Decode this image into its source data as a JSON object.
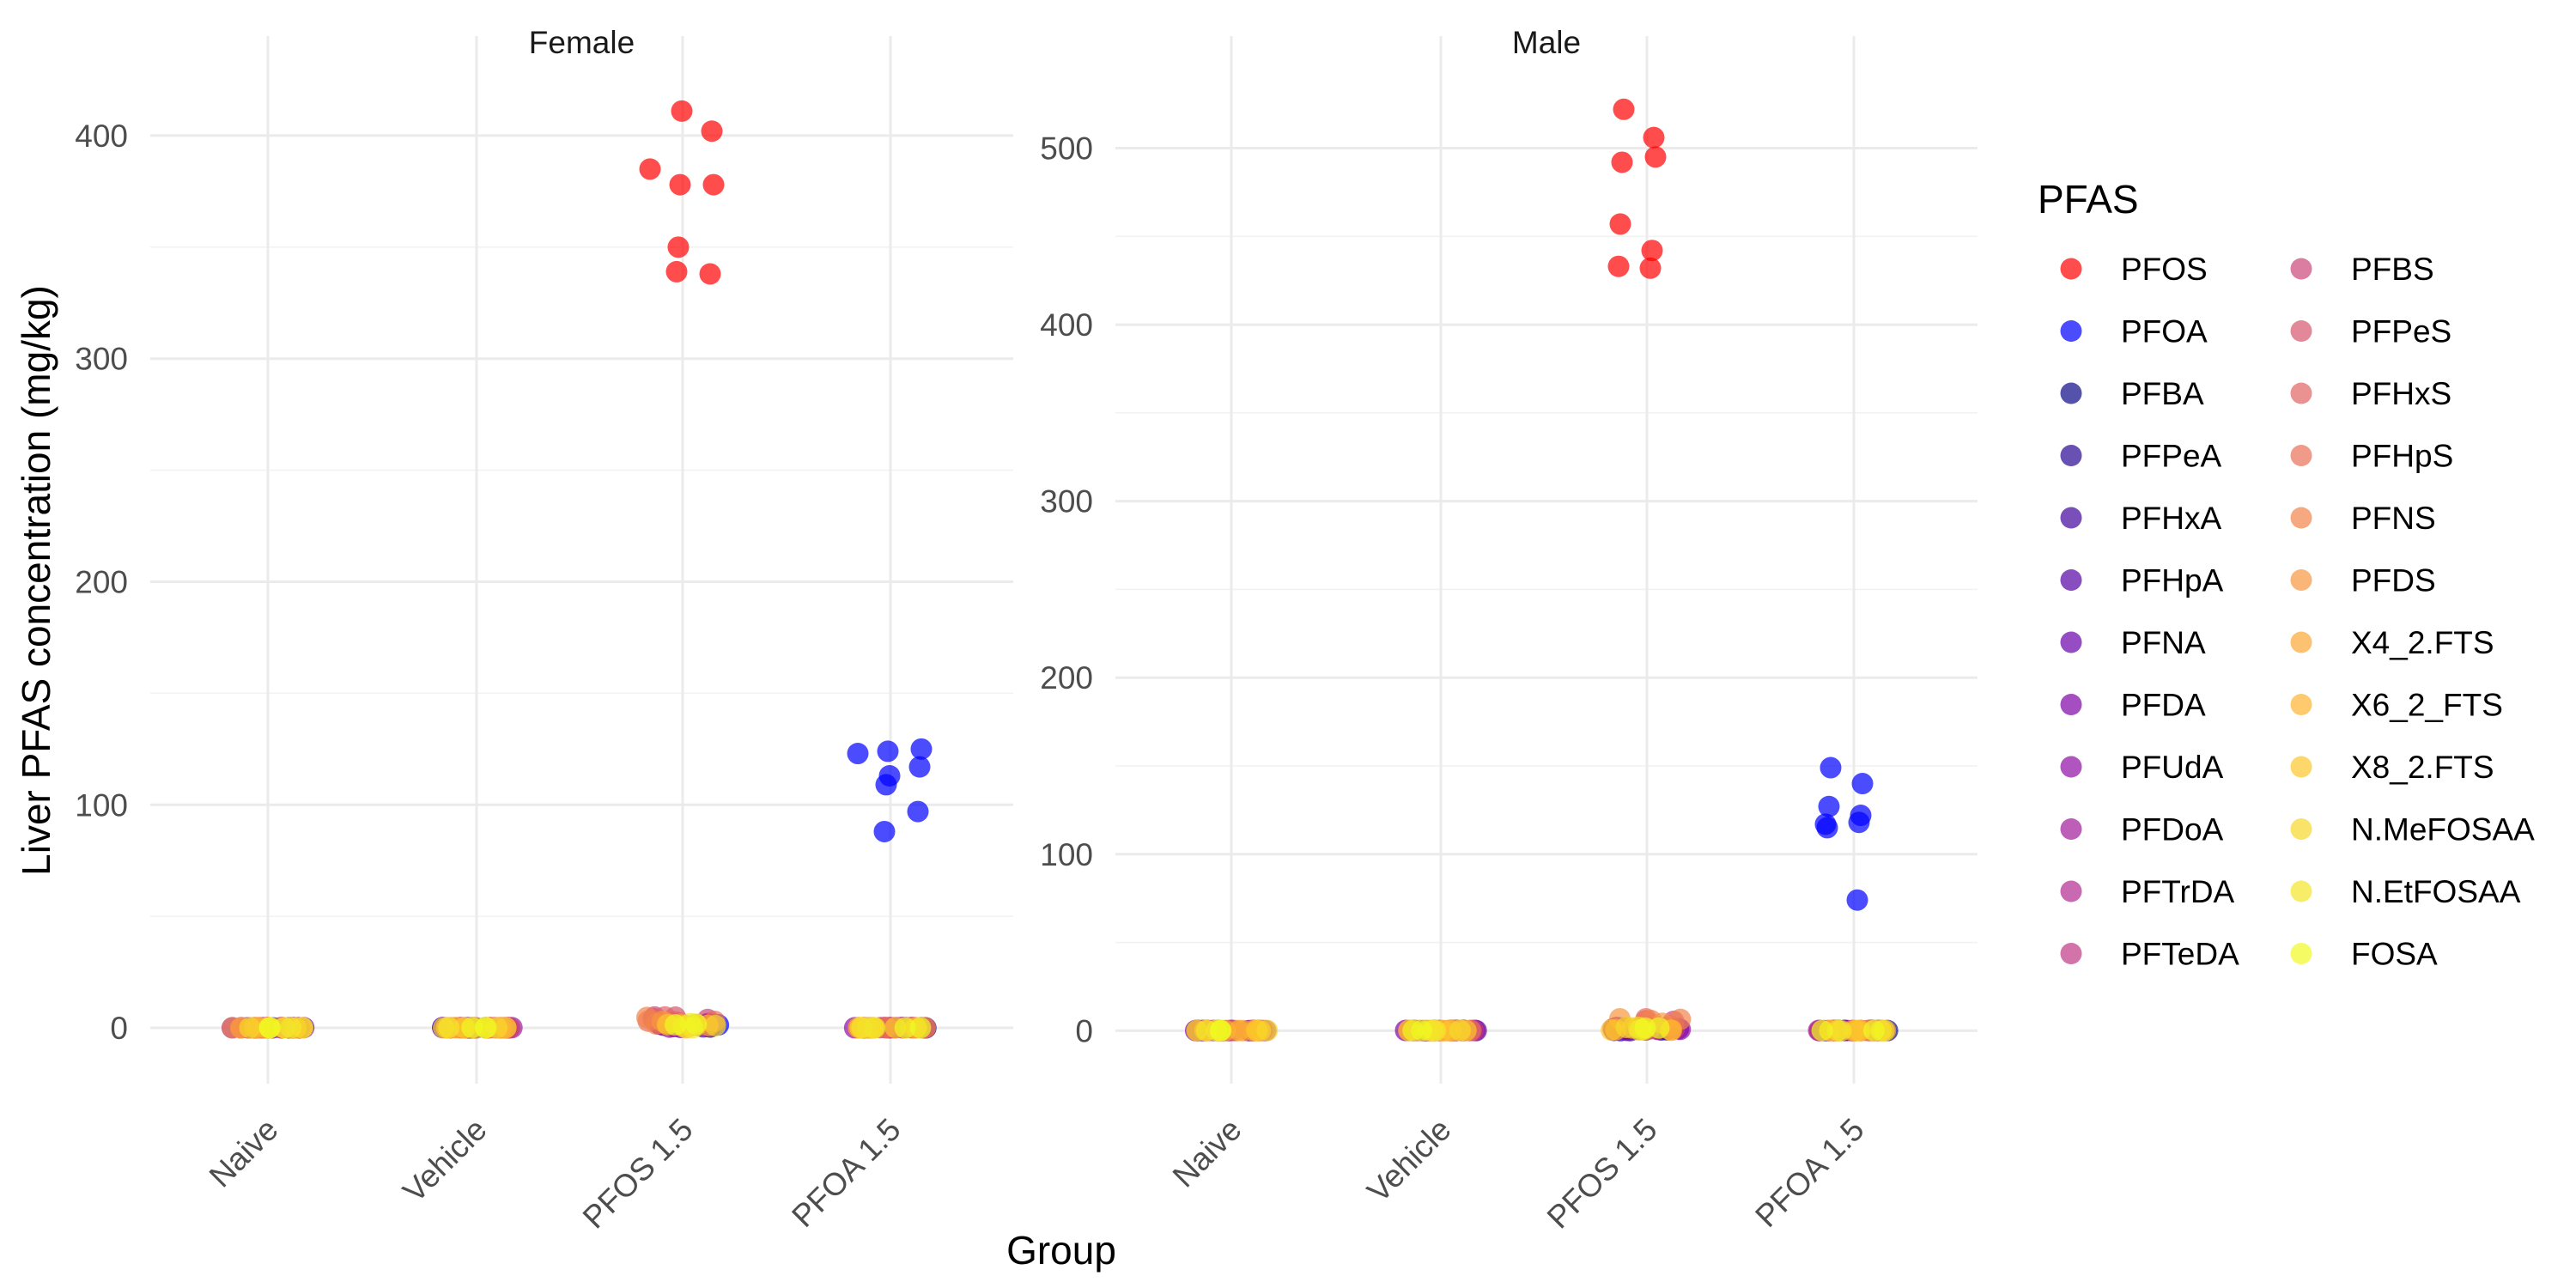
{
  "chart_data": {
    "type": "scatter",
    "subtype": "jitter strip plot, faceted by sex",
    "xlabel": "Group",
    "ylabel": "Liver PFAS concentration (mg/kg)",
    "categories": [
      "Naive",
      "Vehicle",
      "PFOS 1.5",
      "PFOA 1.5"
    ],
    "grid": true,
    "legend_title": "PFAS",
    "legend_position": "right",
    "point_alpha": 0.7,
    "series": [
      {
        "name": "PFOS",
        "color": "#ff0000"
      },
      {
        "name": "PFOA",
        "color": "#0000ff"
      },
      {
        "name": "PFBA",
        "color": "#0d0887"
      },
      {
        "name": "PFPeA",
        "color": "#2a0593"
      },
      {
        "name": "PFHxA",
        "color": "#41049d"
      },
      {
        "name": "PFHpA",
        "color": "#5601a4"
      },
      {
        "name": "PFNA",
        "color": "#6a00a8"
      },
      {
        "name": "PFDA",
        "color": "#7e03a8"
      },
      {
        "name": "PFUdA",
        "color": "#8f0da4"
      },
      {
        "name": "PFDoA",
        "color": "#a11b9b"
      },
      {
        "name": "PFTrDA",
        "color": "#b12a90"
      },
      {
        "name": "PFTeDA",
        "color": "#bf3984"
      },
      {
        "name": "PFBS",
        "color": "#cb4679"
      },
      {
        "name": "PFPeS",
        "color": "#d6556d"
      },
      {
        "name": "PFHxS",
        "color": "#e16462"
      },
      {
        "name": "PFHpS",
        "color": "#e97158"
      },
      {
        "name": "PFNS",
        "color": "#f2844b"
      },
      {
        "name": "PFDS",
        "color": "#f89540"
      },
      {
        "name": "X4_2.FTS",
        "color": "#fca636"
      },
      {
        "name": "X6_2_FTS",
        "color": "#fdb42f"
      },
      {
        "name": "X8_2.FTS",
        "color": "#fcc62b"
      },
      {
        "name": "N.MeFOSAA",
        "color": "#f7d72a"
      },
      {
        "name": "N.EtFOSAA",
        "color": "#f3e62a"
      },
      {
        "name": "FOSA",
        "color": "#f0f921"
      }
    ],
    "facets": [
      {
        "title": "Female",
        "ylim": [
          -25,
          430
        ],
        "y_ticks": [
          0,
          100,
          200,
          300,
          400
        ],
        "y_minor": [
          50,
          150,
          250,
          350
        ],
        "notable_points": [
          {
            "series": "PFOS",
            "group": "PFOS 1.5",
            "values": [
              385,
              411,
              378,
              378,
              402,
              350,
              338,
              339
            ]
          },
          {
            "series": "PFOA",
            "group": "PFOA 1.5",
            "values": [
              123,
              113,
              125,
              124,
              117,
              109,
              97,
              88
            ]
          }
        ],
        "near_zero_points": [
          {
            "group": "PFOS 1.5",
            "max_value": 7
          },
          {
            "group": "Naive",
            "max_value": 0.5
          },
          {
            "group": "Vehicle",
            "max_value": 0.5
          },
          {
            "group": "PFOA 1.5",
            "max_value": 0.5
          }
        ]
      },
      {
        "title": "Male",
        "ylim": [
          -30,
          545
        ],
        "y_ticks": [
          0,
          100,
          200,
          300,
          400,
          500
        ],
        "y_minor": [
          50,
          150,
          250,
          350,
          450
        ],
        "notable_points": [
          {
            "series": "PFOS",
            "group": "PFOS 1.5",
            "values": [
              522,
              495,
              492,
              506,
              457,
              442,
              433,
              432
            ]
          },
          {
            "series": "PFOA",
            "group": "PFOA 1.5",
            "values": [
              149,
              140,
              127,
              122,
              115,
              118,
              117,
              74
            ]
          }
        ],
        "near_zero_points": [
          {
            "group": "PFOS 1.5",
            "max_value": 7
          },
          {
            "group": "Naive",
            "max_value": 0.5
          },
          {
            "group": "Vehicle",
            "max_value": 0.5
          },
          {
            "group": "PFOA 1.5",
            "max_value": 0.5
          }
        ]
      }
    ]
  }
}
